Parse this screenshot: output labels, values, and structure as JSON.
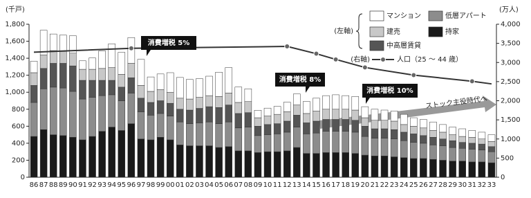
{
  "chart_data": {
    "type": "bar",
    "stacked": true,
    "y_unit": "(千戸)",
    "y2_unit": "(万人)",
    "left_axis_label": "(左軸)",
    "right_axis_label": "(右軸)",
    "categories": [
      "86",
      "87",
      "88",
      "89",
      "90",
      "91",
      "92",
      "93",
      "94",
      "95",
      "96",
      "97",
      "98",
      "99",
      "00",
      "01",
      "02",
      "03",
      "04",
      "05",
      "06",
      "07",
      "08",
      "09",
      "10",
      "11",
      "12",
      "13",
      "14",
      "15",
      "16",
      "17",
      "18",
      "19",
      "20",
      "21",
      "22",
      "23",
      "24",
      "25",
      "26",
      "27",
      "28",
      "29",
      "30",
      "31",
      "32",
      "33"
    ],
    "series": [
      {
        "name": "持家",
        "color": "#1a1a1a",
        "values": [
          480,
          560,
          500,
          490,
          470,
          440,
          480,
          540,
          590,
          550,
          630,
          450,
          440,
          470,
          440,
          380,
          370,
          370,
          370,
          350,
          360,
          310,
          310,
          290,
          300,
          300,
          310,
          350,
          280,
          280,
          290,
          290,
          290,
          280,
          260,
          250,
          250,
          240,
          230,
          220,
          220,
          210,
          200,
          190,
          190,
          180,
          180,
          170
        ]
      },
      {
        "name": "低層アパート",
        "color": "#8c8c8c",
        "values": [
          400,
          480,
          560,
          560,
          540,
          480,
          460,
          420,
          380,
          350,
          360,
          320,
          290,
          280,
          280,
          270,
          260,
          270,
          280,
          280,
          290,
          270,
          280,
          200,
          200,
          210,
          220,
          240,
          230,
          240,
          250,
          250,
          250,
          250,
          220,
          210,
          210,
          210,
          200,
          190,
          180,
          170,
          170,
          160,
          150,
          150,
          140,
          130
        ]
      },
      {
        "name": "中高層賃貸",
        "color": "#555555",
        "values": [
          200,
          240,
          280,
          290,
          300,
          220,
          200,
          180,
          170,
          160,
          180,
          160,
          150,
          150,
          150,
          150,
          160,
          170,
          180,
          190,
          200,
          170,
          170,
          110,
          120,
          120,
          130,
          140,
          130,
          140,
          140,
          140,
          140,
          140,
          120,
          110,
          110,
          110,
          100,
          100,
          90,
          90,
          80,
          80,
          70,
          70,
          70,
          60
        ]
      },
      {
        "name": "建売",
        "color": "#c8c8c8",
        "values": [
          150,
          160,
          150,
          140,
          150,
          130,
          130,
          140,
          150,
          150,
          170,
          150,
          130,
          130,
          130,
          130,
          130,
          130,
          130,
          130,
          140,
          130,
          130,
          100,
          100,
          110,
          110,
          120,
          110,
          120,
          120,
          120,
          120,
          120,
          100,
          100,
          100,
          100,
          90,
          90,
          90,
          80,
          80,
          70,
          70,
          70,
          60,
          60
        ]
      },
      {
        "name": "マンション",
        "color": "#ffffff",
        "values": [
          135,
          289,
          195,
          193,
          205,
          100,
          133,
          206,
          280,
          260,
          303,
          307,
          170,
          185,
          230,
          244,
          231,
          220,
          229,
          286,
          300,
          181,
          150,
          88,
          93,
          94,
          113,
          130,
          142,
          150,
          160,
          170,
          160,
          160,
          130,
          130,
          120,
          120,
          120,
          100,
          100,
          100,
          90,
          90,
          90,
          80,
          80,
          80
        ]
      },
      {
        "name": "人口（25 ～ 44 歳）",
        "type": "line",
        "axis": "y2",
        "color": "#333333",
        "x": [
          "86",
          "96",
          "12",
          "15",
          "17",
          "20",
          "25",
          "31",
          "33"
        ],
        "values": [
          3270,
          3370,
          3420,
          3230,
          3080,
          2870,
          2670,
          2510,
          2440
        ]
      }
    ],
    "ylim": [
      0,
      1800
    ],
    "yticks": [
      0,
      200,
      400,
      600,
      800,
      {
        "value": 1000,
        "label": "1,000"
      },
      {
        "value": 1200,
        "label": "1,200"
      },
      {
        "value": 1400,
        "label": "1,400"
      },
      {
        "value": 1600,
        "label": "1,600"
      },
      {
        "value": 1800,
        "label": "1,800"
      }
    ],
    "y2lim": [
      0,
      4000
    ],
    "y2ticks": [
      0,
      500,
      {
        "value": 1000,
        "label": "1,000"
      },
      {
        "value": 1500,
        "label": "1,500"
      },
      {
        "value": 2000,
        "label": "2,000"
      },
      {
        "value": 2500,
        "label": "2,500"
      },
      {
        "value": 3000,
        "label": "3,000"
      },
      {
        "value": 3500,
        "label": "3,500"
      },
      {
        "value": 4000,
        "label": "4,000"
      }
    ],
    "annotations": [
      "消費増税 5%",
      "消費増税 8%",
      "消費増税 10%",
      "ストック主役時代へ"
    ]
  }
}
